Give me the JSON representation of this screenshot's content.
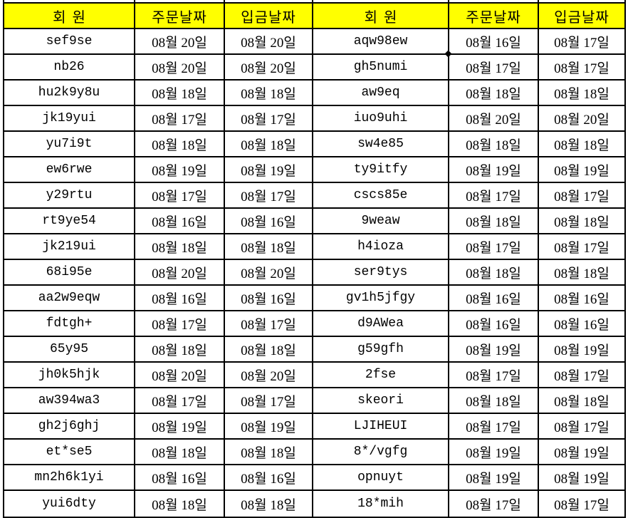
{
  "columns": {
    "member": "회원",
    "order_date": "주문날짜",
    "deposit_date": "입금날짜"
  },
  "colors": {
    "header_bg": "#FFFF00",
    "grid_border": "#000000",
    "text": "#000000"
  },
  "icons": {
    "cell_junction_marker": "diamond-handle"
  },
  "left_table": {
    "rows": [
      {
        "member": "sef9se",
        "order": "08월 20일",
        "deposit": "08월 20일"
      },
      {
        "member": "nb26",
        "order": "08월 20일",
        "deposit": "08월 20일"
      },
      {
        "member": "hu2k9y8u",
        "order": "08월 18일",
        "deposit": "08월 18일"
      },
      {
        "member": "jk19yui",
        "order": "08월 17일",
        "deposit": "08월 17일"
      },
      {
        "member": "yu7i9t",
        "order": "08월 18일",
        "deposit": "08월 18일"
      },
      {
        "member": "ew6rwe",
        "order": "08월 19일",
        "deposit": "08월 19일"
      },
      {
        "member": "y29rtu",
        "order": "08월 17일",
        "deposit": "08월 17일"
      },
      {
        "member": "rt9ye54",
        "order": "08월 16일",
        "deposit": "08월 16일"
      },
      {
        "member": "jk219ui",
        "order": "08월 18일",
        "deposit": "08월 18일"
      },
      {
        "member": "68i95e",
        "order": "08월 20일",
        "deposit": "08월 20일"
      },
      {
        "member": "aa2w9eqw",
        "order": "08월 16일",
        "deposit": "08월 16일"
      },
      {
        "member": "fdtgh+",
        "order": "08월 17일",
        "deposit": "08월 17일"
      },
      {
        "member": "65y95",
        "order": "08월 18일",
        "deposit": "08월 18일"
      },
      {
        "member": "jh0k5hjk",
        "order": "08월 20일",
        "deposit": "08월 20일"
      },
      {
        "member": "aw394wa3",
        "order": "08월 17일",
        "deposit": "08월 17일"
      },
      {
        "member": "gh2j6ghj",
        "order": "08월 19일",
        "deposit": "08월 19일"
      },
      {
        "member": "et*se5",
        "order": "08월 18일",
        "deposit": "08월 18일"
      },
      {
        "member": "mn2h6k1yi",
        "order": "08월 16일",
        "deposit": "08월 16일"
      },
      {
        "member": "yui6dty",
        "order": "08월 18일",
        "deposit": "08월 18일"
      }
    ]
  },
  "right_table": {
    "rows": [
      {
        "member": "aqw98ew",
        "order": "08월 16일",
        "deposit": "08월 17일"
      },
      {
        "member": "gh5numi",
        "order": "08월 17일",
        "deposit": "08월 17일"
      },
      {
        "member": "aw9eq",
        "order": "08월 18일",
        "deposit": "08월 18일"
      },
      {
        "member": "iuo9uhi",
        "order": "08월 20일",
        "deposit": "08월 20일"
      },
      {
        "member": "sw4e85",
        "order": "08월 18일",
        "deposit": "08월 18일"
      },
      {
        "member": "ty9itfy",
        "order": "08월 19일",
        "deposit": "08월 19일"
      },
      {
        "member": "cscs85e",
        "order": "08월 17일",
        "deposit": "08월 17일"
      },
      {
        "member": "9weaw",
        "order": "08월 18일",
        "deposit": "08월 18일"
      },
      {
        "member": "h4ioza",
        "order": "08월 17일",
        "deposit": "08월 17일"
      },
      {
        "member": "ser9tys",
        "order": "08월 18일",
        "deposit": "08월 18일"
      },
      {
        "member": "gv1h5jfgy",
        "order": "08월 16일",
        "deposit": "08월 16일"
      },
      {
        "member": "d9AWea",
        "order": "08월 16일",
        "deposit": "08월 16일"
      },
      {
        "member": "g59gfh",
        "order": "08월 19일",
        "deposit": "08월 19일"
      },
      {
        "member": "2fse",
        "order": "08월 17일",
        "deposit": "08월 17일"
      },
      {
        "member": "skeori",
        "order": "08월 18일",
        "deposit": "08월 18일"
      },
      {
        "member": "LJIHEUI",
        "order": "08월 17일",
        "deposit": "08월 17일"
      },
      {
        "member": "8*/vgfg",
        "order": "08월 19일",
        "deposit": "08월 19일"
      },
      {
        "member": "opnuyt",
        "order": "08월 19일",
        "deposit": "08월 19일"
      },
      {
        "member": "18*mih",
        "order": "08월 17일",
        "deposit": "08월 17일"
      }
    ]
  }
}
